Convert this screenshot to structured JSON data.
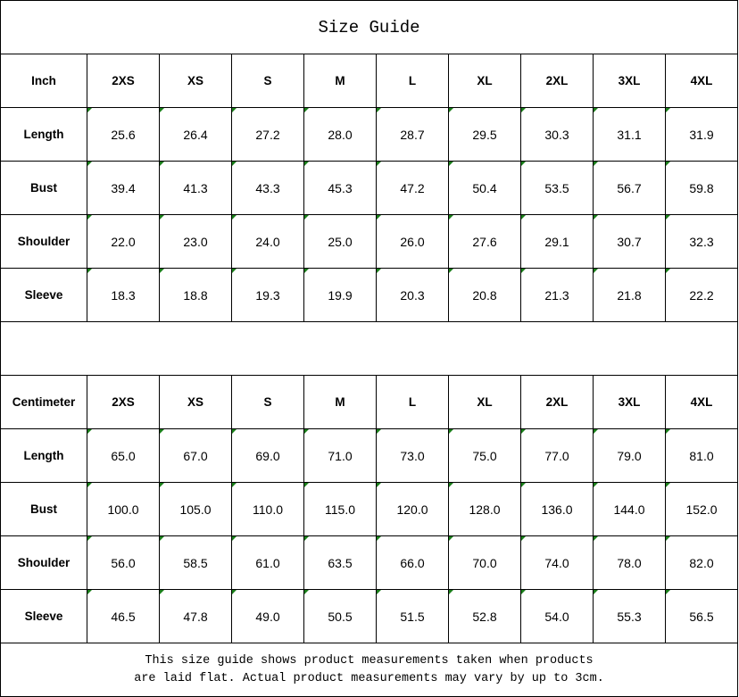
{
  "title": "Size Guide",
  "sizes": [
    "2XS",
    "XS",
    "S",
    "M",
    "L",
    "XL",
    "2XL",
    "3XL",
    "4XL"
  ],
  "tables": [
    {
      "unit": "Inch",
      "rows": [
        {
          "label": "Length",
          "values": [
            "25.6",
            "26.4",
            "27.2",
            "28.0",
            "28.7",
            "29.5",
            "30.3",
            "31.1",
            "31.9"
          ]
        },
        {
          "label": "Bust",
          "values": [
            "39.4",
            "41.3",
            "43.3",
            "45.3",
            "47.2",
            "50.4",
            "53.5",
            "56.7",
            "59.8"
          ]
        },
        {
          "label": "Shoulder",
          "values": [
            "22.0",
            "23.0",
            "24.0",
            "25.0",
            "26.0",
            "27.6",
            "29.1",
            "30.7",
            "32.3"
          ]
        },
        {
          "label": "Sleeve",
          "values": [
            "18.3",
            "18.8",
            "19.3",
            "19.9",
            "20.3",
            "20.8",
            "21.3",
            "21.8",
            "22.2"
          ]
        }
      ]
    },
    {
      "unit": "Centimeter",
      "rows": [
        {
          "label": "Length",
          "values": [
            "65.0",
            "67.0",
            "69.0",
            "71.0",
            "73.0",
            "75.0",
            "77.0",
            "79.0",
            "81.0"
          ]
        },
        {
          "label": "Bust",
          "values": [
            "100.0",
            "105.0",
            "110.0",
            "115.0",
            "120.0",
            "128.0",
            "136.0",
            "144.0",
            "152.0"
          ]
        },
        {
          "label": "Shoulder",
          "values": [
            "56.0",
            "58.5",
            "61.0",
            "63.5",
            "66.0",
            "70.0",
            "74.0",
            "78.0",
            "82.0"
          ]
        },
        {
          "label": "Sleeve",
          "values": [
            "46.5",
            "47.8",
            "49.0",
            "50.5",
            "51.5",
            "52.8",
            "54.0",
            "55.3",
            "56.5"
          ]
        }
      ]
    }
  ],
  "note_line1": "This size guide shows product measurements taken when products",
  "note_line2": "are laid flat. Actual product measurements may vary by up to 3cm.",
  "colors": {
    "border": "#000000",
    "cell_marker": "#1a7f1a"
  }
}
